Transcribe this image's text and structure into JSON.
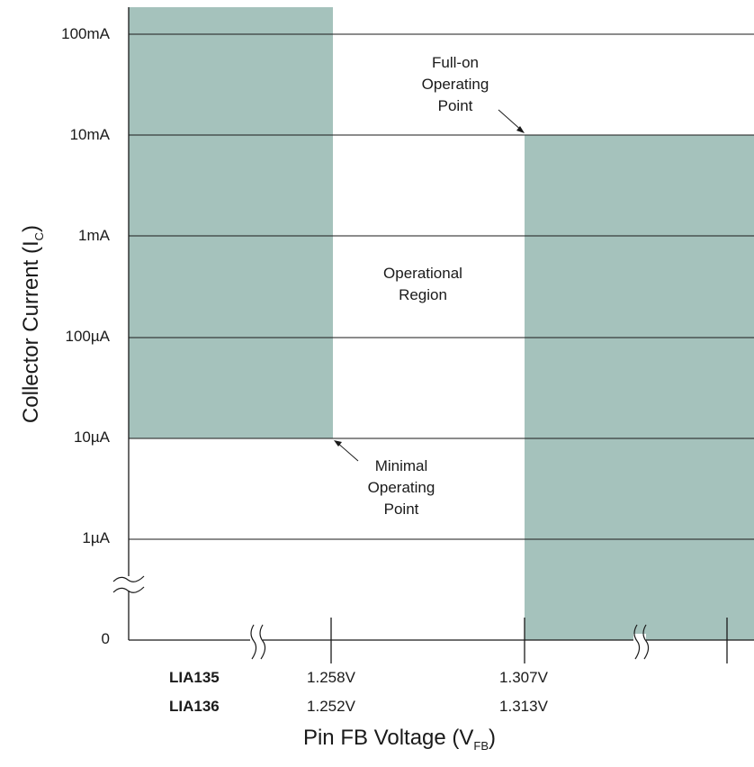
{
  "chart_data": {
    "type": "area",
    "y_scale": "log",
    "y_ticks": [
      "100mA",
      "10mA",
      "1mA",
      "100µA",
      "10µA",
      "1µA",
      "0"
    ],
    "ylabel_main": "Collector Current (I",
    "ylabel_sub": "C",
    "ylabel_end": ")",
    "xlabel_main": "Pin FB Voltage (V",
    "xlabel_sub": "FB",
    "xlabel_end": ")",
    "x_tick_rows": [
      {
        "device": "LIA135",
        "low": "1.258V",
        "high": "1.307V"
      },
      {
        "device": "LIA136",
        "low": "1.252V",
        "high": "1.313V"
      }
    ],
    "shaded_regions": [
      {
        "x_from": "0",
        "x_to": "1.258V",
        "y_from": "10µA",
        "y_to": "above 100mA"
      },
      {
        "x_from": "1.307V",
        "x_to": "end",
        "y_from": "0",
        "y_to": "10mA"
      }
    ],
    "annotations": {
      "full_on": [
        "Full-on",
        "Operating",
        "Point"
      ],
      "region": [
        "Operational",
        "Region"
      ],
      "minimal": [
        "Minimal",
        "Operating",
        "Point"
      ]
    },
    "colors": {
      "shade": "#a5c2bc",
      "line": "#1a1a1a"
    }
  }
}
